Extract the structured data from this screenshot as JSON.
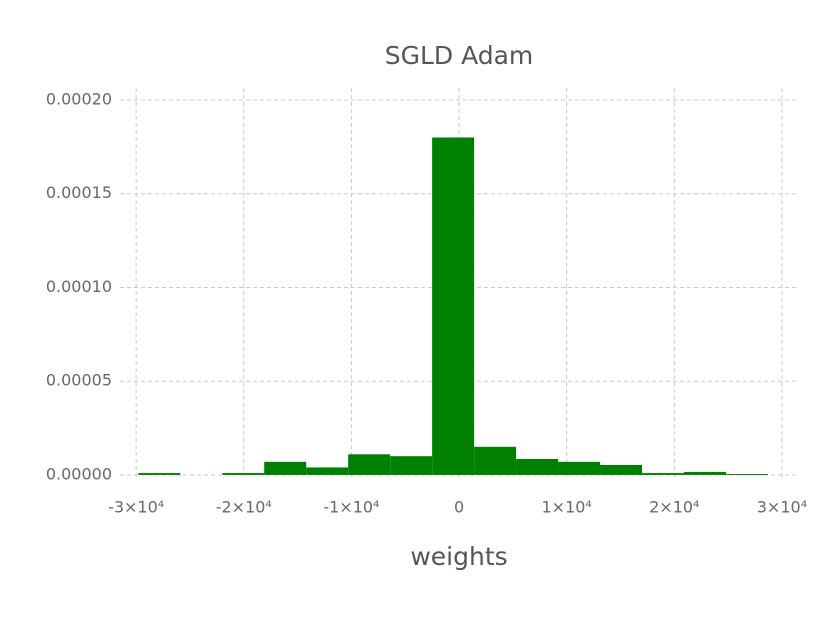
{
  "chart_data": {
    "type": "histogram",
    "title": "SGLD Adam",
    "x_label": "weights",
    "bins": [
      -29800,
      -25900,
      -22000,
      -18100,
      -14200,
      -10300,
      -6400,
      -2500,
      1400,
      5300,
      9200,
      13100,
      17000,
      20900,
      24800,
      28700
    ],
    "values": [
      1e-06,
      0,
      1e-06,
      7e-06,
      4e-06,
      1.1e-05,
      1e-05,
      0.00018,
      1.5e-05,
      8.5e-06,
      7e-06,
      5.3e-06,
      1e-06,
      1.6e-06,
      5e-07
    ],
    "color": "#008000",
    "xlim": [
      -31500,
      31400
    ],
    "xticks": [
      {
        "value": -30000,
        "label": "-3×10⁴"
      },
      {
        "value": -20000,
        "label": "-2×10⁴"
      },
      {
        "value": -10000,
        "label": "-1×10⁴"
      },
      0,
      {
        "value": 10000,
        "label": "1×10⁴"
      },
      {
        "value": 20000,
        "label": "2×10⁴"
      },
      {
        "value": 30000,
        "label": "3×10⁴"
      }
    ],
    "ylim": [
      -2.7e-06,
      0.0002064
    ],
    "yticks": [
      {
        "value": 0,
        "label": "0.00000"
      },
      {
        "value": 5e-05,
        "label": "0.00005"
      },
      {
        "value": 0.0001,
        "label": "0.00010"
      },
      {
        "value": 0.00015,
        "label": "0.00015"
      },
      {
        "value": 0.0002,
        "label": "0.00020"
      }
    ],
    "grid": true
  }
}
